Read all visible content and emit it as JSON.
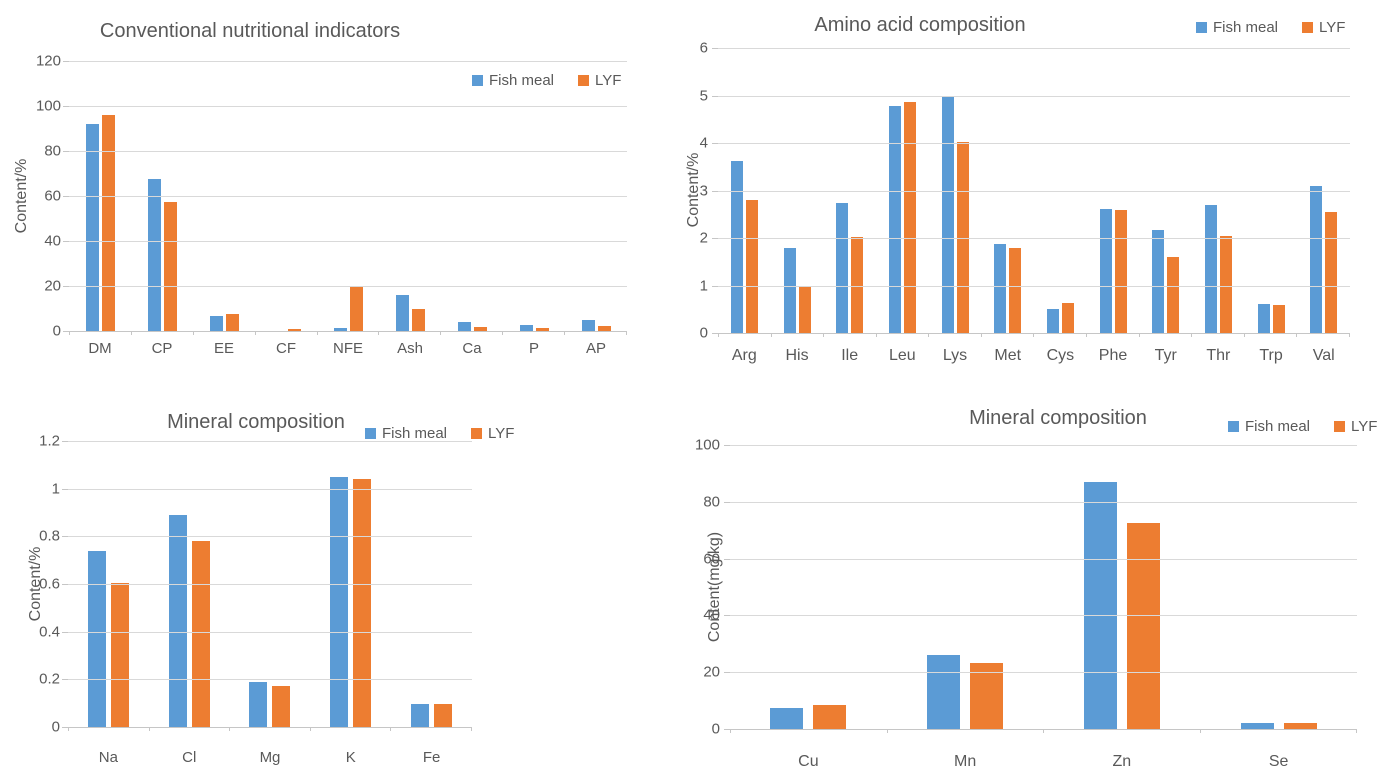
{
  "page": {
    "background": "#ffffff"
  },
  "series_colors": {
    "fish_meal": "#5B9BD5",
    "lyf": "#ED7D31"
  },
  "text_color": "#595959",
  "gridline_color": "#D9D9D9",
  "chart_data": [
    {
      "type": "bar",
      "title": "Conventional nutritional indicators",
      "ylabel": "Content/%",
      "xlabel": "",
      "ylim": [
        0,
        120
      ],
      "yticks": [
        0,
        20,
        40,
        60,
        80,
        100,
        120
      ],
      "grid": true,
      "legend_position": "top-right-inside",
      "categories": [
        "DM",
        "CP",
        "EE",
        "CF",
        "NFE",
        "Ash",
        "Ca",
        "P",
        "AP"
      ],
      "series": [
        {
          "name": "Fish meal",
          "color": "#5B9BD5",
          "values": [
            92,
            67.5,
            6.5,
            0,
            1.5,
            16,
            4,
            2.8,
            4.8
          ]
        },
        {
          "name": "LYF",
          "color": "#ED7D31",
          "values": [
            96,
            57.3,
            7.5,
            1,
            19.7,
            10,
            2,
            1.2,
            2.3
          ]
        }
      ]
    },
    {
      "type": "bar",
      "title": "Amino acid composition",
      "ylabel": "Content/%",
      "xlabel": "",
      "ylim": [
        0,
        6
      ],
      "yticks": [
        0,
        1,
        2,
        3,
        4,
        5,
        6
      ],
      "grid": true,
      "legend_position": "top-right",
      "categories": [
        "Arg",
        "His",
        "Ile",
        "Leu",
        "Lys",
        "Met",
        "Cys",
        "Phe",
        "Tyr",
        "Thr",
        "Trp",
        "Val"
      ],
      "series": [
        {
          "name": "Fish meal",
          "color": "#5B9BD5",
          "values": [
            3.63,
            1.78,
            2.73,
            4.77,
            5.0,
            1.88,
            0.5,
            2.62,
            2.16,
            2.7,
            0.62,
            3.1
          ]
        },
        {
          "name": "LYF",
          "color": "#ED7D31",
          "values": [
            2.81,
            1.0,
            2.03,
            4.87,
            4.02,
            1.78,
            0.64,
            2.6,
            1.59,
            2.04,
            0.58,
            2.54
          ]
        }
      ]
    },
    {
      "type": "bar",
      "title": "Mineral composition",
      "ylabel": "Content/%",
      "xlabel": "",
      "ylim": [
        0,
        1.2
      ],
      "yticks": [
        0,
        0.2,
        0.4,
        0.6,
        0.8,
        1,
        1.2
      ],
      "grid": true,
      "legend_position": "top-right",
      "categories": [
        "Na",
        "Cl",
        "Mg",
        "K",
        "Fe"
      ],
      "series": [
        {
          "name": "Fish meal",
          "color": "#5B9BD5",
          "values": [
            0.74,
            0.89,
            0.19,
            1.05,
            0.095
          ]
        },
        {
          "name": "LYF",
          "color": "#ED7D31",
          "values": [
            0.605,
            0.78,
            0.17,
            1.04,
            0.095
          ]
        }
      ]
    },
    {
      "type": "bar",
      "title": "Mineral composition",
      "ylabel": "Content(mg/kg)",
      "xlabel": "",
      "ylim": [
        0,
        100
      ],
      "yticks": [
        0,
        20,
        40,
        60,
        80,
        100
      ],
      "grid": true,
      "legend_position": "top-right",
      "categories": [
        "Cu",
        "Mn",
        "Zn",
        "Se"
      ],
      "series": [
        {
          "name": "Fish meal",
          "color": "#5B9BD5",
          "values": [
            7.3,
            26,
            87,
            2.1
          ]
        },
        {
          "name": "LYF",
          "color": "#ED7D31",
          "values": [
            8.4,
            23.3,
            72.5,
            2.0
          ]
        }
      ]
    }
  ]
}
